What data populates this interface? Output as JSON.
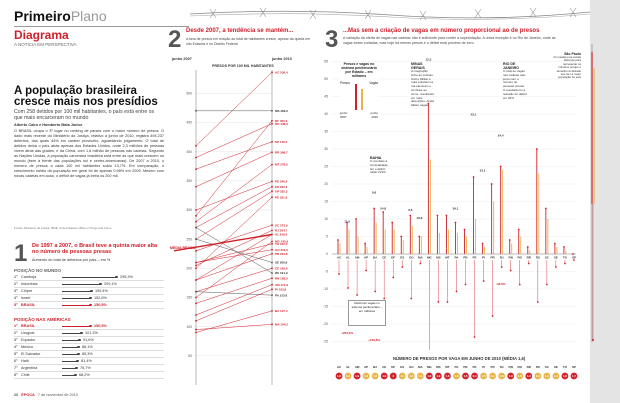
{
  "header": {
    "section": "Primeiro",
    "section_sub": "Plano",
    "kicker": "Diagrama",
    "kicker_sub": "A NOTÍCIA EM PERSPECTIVA"
  },
  "main_story": {
    "headline": "A população brasileira cresce mais nos presídios",
    "deck": "Com 258 detidos por 100 mil habitantes, o país está entre os que mais encarceram no mundo",
    "byline": "Alberto Cairo e Humberto Maia Júnior",
    "body": "O BRASIL ocupa o 3º lugar no ranking de países com o maior número de presos. O dado mais recente do Ministério da Justiça, relativo a junho de 2010, registra 494.237 detentos, dos quais 44% em caráter provisório, aguardando julgamento. O total de detidos deixa o país atrás apenas dos Estados Unidos, onde 2,3 milhões de pessoas vivem atrás das grades, e da China, com 1,6 milhão de pessoas nas cadeias. Segundo as Nações Unidas, a população carcerária brasileira está entre as que mais crescem no mundo (bem à frente das populações sul e centro-americanas). De 2007 a 2010, o número de presos a cada 100 mil habitantes subiu 13,7%. Em comparação, o crescimento médio da população em geral foi de apenas 0,98% em 2009. Mesmo com novas cadeias em acao, o déficit de vagas já beira os 200 mil.",
    "source": "Fontes: Ministério da Justiça, IBGE, United Nations Office on Drugs and Crime"
  },
  "section1": {
    "number": "1",
    "title": "De 1997 a 2007, o Brasil teve a quinta maior alta no número de pessoas presas",
    "subtitle": "Aumento do total de detentos por país – em %",
    "world_label": "POSIÇÃO NO MUNDO",
    "world": [
      {
        "country": "Camboja",
        "value": "295,3%"
      },
      {
        "country": "Indonésia",
        "value": "209,1%"
      },
      {
        "country": "Chipre",
        "value": "159,4%"
      },
      {
        "country": "Israel",
        "value": "152,6%"
      },
      {
        "country": "BRASIL",
        "value": "150,5%"
      }
    ],
    "americas_label": "POSIÇÃO NAS AMÉRICAS",
    "americas": [
      {
        "country": "BRASIL",
        "value": "150,5%"
      },
      {
        "country": "Uruguai",
        "value": "101,3%"
      },
      {
        "country": "Equador",
        "value": "91,6%"
      },
      {
        "country": "México",
        "value": "86,1%"
      },
      {
        "country": "El Salvador",
        "value": "85,3%"
      },
      {
        "country": "Haiti",
        "value": "81,4%"
      },
      {
        "country": "Argentina",
        "value": "76,7%"
      },
      {
        "country": "Chile",
        "value": "68,2%"
      }
    ]
  },
  "section2": {
    "number": "2",
    "title": "Desde 2007, a tendência se mantém...",
    "deck": "A taxa de presos em relação ao total de habitantes cresce, apesar da queda em oito Estados e no Distrito Federal",
    "col_left": "junho 2007",
    "col_right": "junho 2010",
    "axis_label": "PRESOS POR 100 MIL HABITANTES",
    "media_label": "MÉDIA BRASIL",
    "right_labels": [
      "AC 536,4",
      "MS 469,6",
      "DF 453,4",
      "RO 448,3",
      "SP 416,5",
      "RR 398,7",
      "MT 378,0",
      "PE 349,4",
      "ES 340,4",
      "AP 332,3",
      "PE 321,6",
      "SC 273,9",
      "RJ 264,7",
      "AL 258,0",
      "MG 245,9",
      "TO 242,0",
      "GO 231,5",
      "PR 224,8",
      "SE 209,6",
      "CE 199,6",
      "RS 191,9",
      "RN 183,3",
      "AM 171,9",
      "PI 163,8",
      "PA 153,6",
      "BA 127,4",
      "MA 104,2"
    ],
    "ticks": [
      "500",
      "450",
      "400",
      "350",
      "300",
      "250",
      "200",
      "150",
      "100",
      "50"
    ]
  },
  "section3": {
    "number": "3",
    "title": "...Mas sem a criação de vagas em número proporcional ao de presos",
    "deck": "A variação da oferta de vagas nas cadeias não é suficiente para conter a superlotação. A única exceção é no Rio de Janeiro, onde as vagas foram cortadas, mas hoje há menos presos e o déficit está próximo de zero",
    "legend_title": "Presos e vagas no sistema penitenciário por Estado – em milhares",
    "legend_presos": "Presos",
    "legend_vagas": "Vagas",
    "legend_2007": "junho 2007",
    "legend_2010": "junho 2010",
    "note_mg": "MINAS GERAIS",
    "note_mg_text": "A integração entre as polícias Civil e Militar e mais policiais na rua elevaram o combate ao crime, resultando em mais detenções. Ainda faltam vagas",
    "note_ba": "BAHIA",
    "note_ba_text": "O combate à criminalidade fez o déficit saltar 221%",
    "note_rj": "RIO DE JANEIRO",
    "note_rj_text": "O total de vagas nas cadeias caiu junto com o número de pessoas presas. O resultado foi a redução do déficit em 92%",
    "note_sp": "São Paulo",
    "note_sp_text": "Foi usada uma escala diferente para representar os números porque o tamanho do Estado que tem a maior população do país",
    "deficit_title": "Déficit de vagas no sistema penitenciário – em milhares",
    "bottom_title": "NÚMERO DE PRESOS POR VAGA EM JUNHO DE 2010 (MÉDIA 1,6)",
    "states": [
      "AC",
      "AL",
      "AM",
      "AP",
      "BA",
      "CE",
      "DF",
      "ES",
      "GO",
      "MA",
      "MG",
      "MS",
      "MT",
      "PA",
      "PB",
      "PE",
      "PI",
      "PR",
      "RJ",
      "RN",
      "RO",
      "RR",
      "RS",
      "SC",
      "SE",
      "TO",
      "SP"
    ],
    "ratios": [
      "1,6",
      "1,3",
      "1,9",
      "1,3",
      "1,2",
      "1,9",
      "2",
      "1,1",
      "1,3",
      "1,1",
      "1,6",
      "1,9",
      "1,6",
      "1,5",
      "1,6",
      "2,4",
      "1,5",
      "1,4",
      "1,3",
      "1,8",
      "1,5",
      "1,9",
      "1,3",
      "1,3",
      "1,4",
      "1,6",
      "1,7"
    ],
    "ticks": [
      "55",
      "50",
      "45",
      "40",
      "35",
      "30",
      "25",
      "20",
      "15",
      "10",
      "5",
      "0",
      "-5",
      "-10",
      "-15",
      "-20",
      "-25"
    ],
    "values_top": [
      "8,6",
      "11,9",
      "9,6",
      "16,8",
      "54,8",
      "12,3",
      "39,1",
      "23,1",
      "33,1",
      "24,4"
    ],
    "deficits": [
      "+253,9%",
      "+169,8%",
      "+63,6%",
      "+42,6%",
      "+34,8%",
      "-48,6%",
      "+23,3%"
    ]
  },
  "footer": {
    "page": "20",
    "magazine": "ÉPOCA",
    "date": "7 de novembro de 2010"
  }
}
